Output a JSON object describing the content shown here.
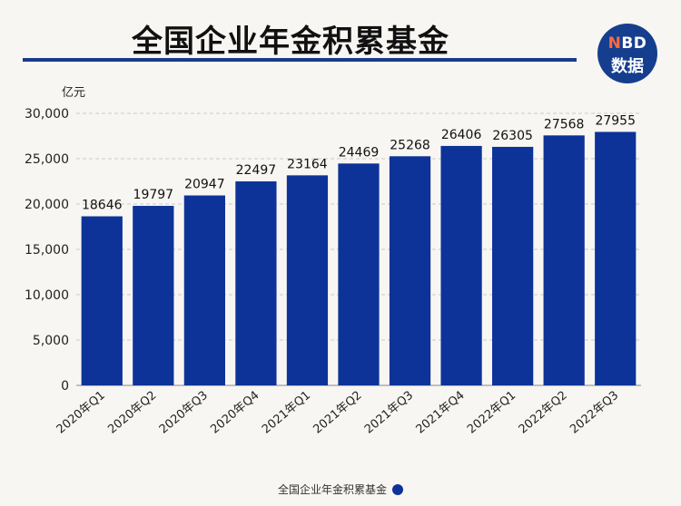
{
  "header": {
    "title": "全国企业年金积累基金",
    "logo_top": "NBD",
    "logo_bottom": "数据"
  },
  "colors": {
    "bar": "#0d3399",
    "title_rule": "#1b3a8a"
  },
  "chart_data": {
    "type": "bar",
    "title": "全国企业年金积累基金",
    "ylabel": "亿元",
    "xlabel": "",
    "ylim": [
      0,
      30000
    ],
    "yticks": [
      0,
      5000,
      10000,
      15000,
      20000,
      25000,
      30000
    ],
    "ytick_labels": [
      "0",
      "5,000",
      "10,000",
      "15,000",
      "20,000",
      "25,000",
      "30,000"
    ],
    "categories": [
      "2020年Q1",
      "2020年Q2",
      "2020年Q3",
      "2020年Q4",
      "2021年Q1",
      "2021年Q2",
      "2021年Q3",
      "2021年Q4",
      "2022年Q1",
      "2022年Q2",
      "2022年Q3"
    ],
    "series": [
      {
        "name": "全国企业年金积累基金",
        "values": [
          18646,
          19797,
          20947,
          22497,
          23164,
          24469,
          25268,
          26406,
          26305,
          27568,
          27955
        ]
      }
    ],
    "grid": true,
    "legend_position": "bottom"
  }
}
